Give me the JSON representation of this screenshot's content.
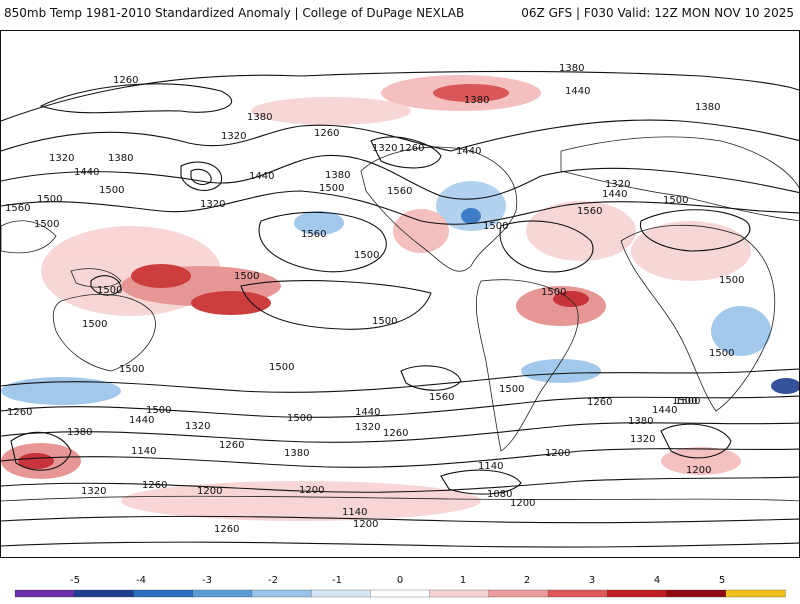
{
  "header": {
    "title_left": "850mb Temp 1981-2010 Standardized Anomaly | College of DuPage NEXLAB",
    "title_right": "06Z GFS | F030 Valid: 12Z MON NOV 10 2025"
  },
  "contour_labels": [
    "1260",
    "1380",
    "1440",
    "1380",
    "1380",
    "1320",
    "1260",
    "1380",
    "1320",
    "1260",
    "1440",
    "1320",
    "1380",
    "1440",
    "1500",
    "1440",
    "1380",
    "1500",
    "1560",
    "1560",
    "1500",
    "1440",
    "1500",
    "1500",
    "1320",
    "1320",
    "1500",
    "1560",
    "1500",
    "1500",
    "1560",
    "1500",
    "1500",
    "1500",
    "1500",
    "1500",
    "1500",
    "1500",
    "1500",
    "1500",
    "1560",
    "1500",
    "1500",
    "1500",
    "1260",
    "1440",
    "1380",
    "1320",
    "1260",
    "1440",
    "1320",
    "1260",
    "1380",
    "1140",
    "1200",
    "1260",
    "1320",
    "1260",
    "1200",
    "1380",
    "1320",
    "1440",
    "1500",
    "1200",
    "1140",
    "1080",
    "1200",
    "1140",
    "1200",
    "1260",
    "1200"
  ],
  "colorbar": {
    "ticks": [
      "-5",
      "-4",
      "-3",
      "-2",
      "-1",
      "0",
      "1",
      "2",
      "3",
      "4",
      "5"
    ],
    "colors": [
      "#6b2fa8",
      "#1f3f8f",
      "#2b6fc2",
      "#5a9bd8",
      "#98c3ea",
      "#d6e7f6",
      "#ffffff",
      "#f7d2d2",
      "#ec9c9c",
      "#dd5a5a",
      "#c01e24",
      "#8e0a10",
      "#f2c21a"
    ]
  }
}
